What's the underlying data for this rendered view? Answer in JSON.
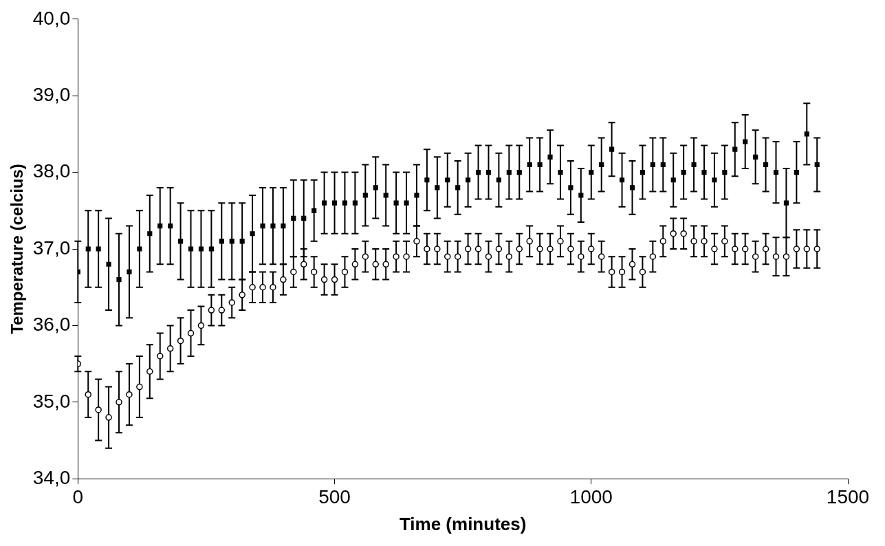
{
  "chart_data": {
    "type": "scatter",
    "xlabel": "Time (minutes)",
    "ylabel": "Temperature (celcius)",
    "x": [
      0,
      20,
      40,
      60,
      80,
      100,
      120,
      140,
      160,
      180,
      200,
      220,
      240,
      260,
      280,
      300,
      320,
      340,
      360,
      380,
      400,
      420,
      440,
      460,
      480,
      500,
      520,
      540,
      560,
      580,
      600,
      620,
      640,
      660,
      680,
      700,
      720,
      740,
      760,
      780,
      800,
      820,
      840,
      860,
      880,
      900,
      920,
      940,
      960,
      980,
      1000,
      1020,
      1040,
      1060,
      1080,
      1100,
      1120,
      1140,
      1160,
      1180,
      1200,
      1220,
      1240,
      1260,
      1280,
      1300,
      1320,
      1340,
      1360,
      1380,
      1400,
      1420,
      1440
    ],
    "xlim": [
      0,
      1500
    ],
    "xticks": [
      0,
      500,
      1000,
      1500
    ],
    "ylim": [
      34,
      40
    ],
    "yticks": [
      {
        "value": 34,
        "label": "34,0"
      },
      {
        "value": 35,
        "label": "35,0"
      },
      {
        "value": 36,
        "label": "36,0"
      },
      {
        "value": 37,
        "label": "37,0"
      },
      {
        "value": 38,
        "label": "38,0"
      },
      {
        "value": 39,
        "label": "39,0"
      },
      {
        "value": 40,
        "label": "40,0"
      }
    ],
    "grid": false,
    "legend": false,
    "series": [
      {
        "color": "#000000",
        "marker": "square",
        "values": [
          36.7,
          37.0,
          37.0,
          36.8,
          36.6,
          36.7,
          37.0,
          37.2,
          37.3,
          37.3,
          37.1,
          37.0,
          37.0,
          37.0,
          37.1,
          37.1,
          37.1,
          37.2,
          37.3,
          37.3,
          37.3,
          37.4,
          37.4,
          37.5,
          37.6,
          37.6,
          37.6,
          37.6,
          37.7,
          37.8,
          37.7,
          37.6,
          37.6,
          37.7,
          37.9,
          37.8,
          37.9,
          37.8,
          37.9,
          38.0,
          38.0,
          37.9,
          38.0,
          38.0,
          38.1,
          38.1,
          38.2,
          38.0,
          37.8,
          37.7,
          38.0,
          38.1,
          38.3,
          37.9,
          37.8,
          38.0,
          38.1,
          38.1,
          37.9,
          38.0,
          38.1,
          38.0,
          37.9,
          38.0,
          38.3,
          38.4,
          38.2,
          38.1,
          38.0,
          37.6,
          38.0,
          38.5,
          38.1
        ],
        "errors": [
          0.4,
          0.5,
          0.5,
          0.6,
          0.6,
          0.6,
          0.5,
          0.5,
          0.5,
          0.5,
          0.5,
          0.5,
          0.5,
          0.5,
          0.5,
          0.5,
          0.5,
          0.5,
          0.5,
          0.5,
          0.5,
          0.5,
          0.5,
          0.4,
          0.4,
          0.4,
          0.4,
          0.4,
          0.4,
          0.4,
          0.4,
          0.4,
          0.4,
          0.4,
          0.4,
          0.4,
          0.35,
          0.35,
          0.35,
          0.35,
          0.35,
          0.35,
          0.35,
          0.35,
          0.35,
          0.35,
          0.35,
          0.35,
          0.35,
          0.35,
          0.35,
          0.35,
          0.35,
          0.35,
          0.35,
          0.35,
          0.35,
          0.35,
          0.35,
          0.35,
          0.35,
          0.35,
          0.35,
          0.35,
          0.35,
          0.35,
          0.35,
          0.35,
          0.4,
          0.45,
          0.4,
          0.4,
          0.35
        ]
      },
      {
        "color": "#000000",
        "marker": "circle",
        "values": [
          35.5,
          35.1,
          34.9,
          34.8,
          35.0,
          35.1,
          35.2,
          35.4,
          35.6,
          35.7,
          35.8,
          35.9,
          36.0,
          36.2,
          36.2,
          36.3,
          36.4,
          36.5,
          36.5,
          36.5,
          36.6,
          36.7,
          36.8,
          36.7,
          36.6,
          36.6,
          36.7,
          36.8,
          36.9,
          36.8,
          36.8,
          36.9,
          36.9,
          37.1,
          37.0,
          37.0,
          36.9,
          36.9,
          37.0,
          37.0,
          36.9,
          37.0,
          36.9,
          37.0,
          37.1,
          37.0,
          37.0,
          37.1,
          37.0,
          36.9,
          37.0,
          36.9,
          36.7,
          36.7,
          36.8,
          36.7,
          36.9,
          37.1,
          37.2,
          37.2,
          37.1,
          37.1,
          37.0,
          37.1,
          37.0,
          37.0,
          36.9,
          37.0,
          36.9,
          36.9,
          37.0,
          37.0,
          37.0
        ],
        "errors": [
          0.1,
          0.3,
          0.4,
          0.4,
          0.4,
          0.4,
          0.4,
          0.35,
          0.3,
          0.3,
          0.3,
          0.3,
          0.25,
          0.2,
          0.2,
          0.2,
          0.2,
          0.2,
          0.2,
          0.2,
          0.2,
          0.2,
          0.2,
          0.2,
          0.2,
          0.2,
          0.2,
          0.2,
          0.2,
          0.2,
          0.2,
          0.2,
          0.2,
          0.2,
          0.2,
          0.2,
          0.2,
          0.2,
          0.2,
          0.2,
          0.2,
          0.2,
          0.2,
          0.2,
          0.2,
          0.2,
          0.2,
          0.2,
          0.2,
          0.2,
          0.2,
          0.2,
          0.2,
          0.2,
          0.2,
          0.2,
          0.2,
          0.2,
          0.2,
          0.2,
          0.2,
          0.2,
          0.2,
          0.2,
          0.2,
          0.2,
          0.2,
          0.2,
          0.25,
          0.25,
          0.25,
          0.25,
          0.25
        ]
      }
    ]
  }
}
